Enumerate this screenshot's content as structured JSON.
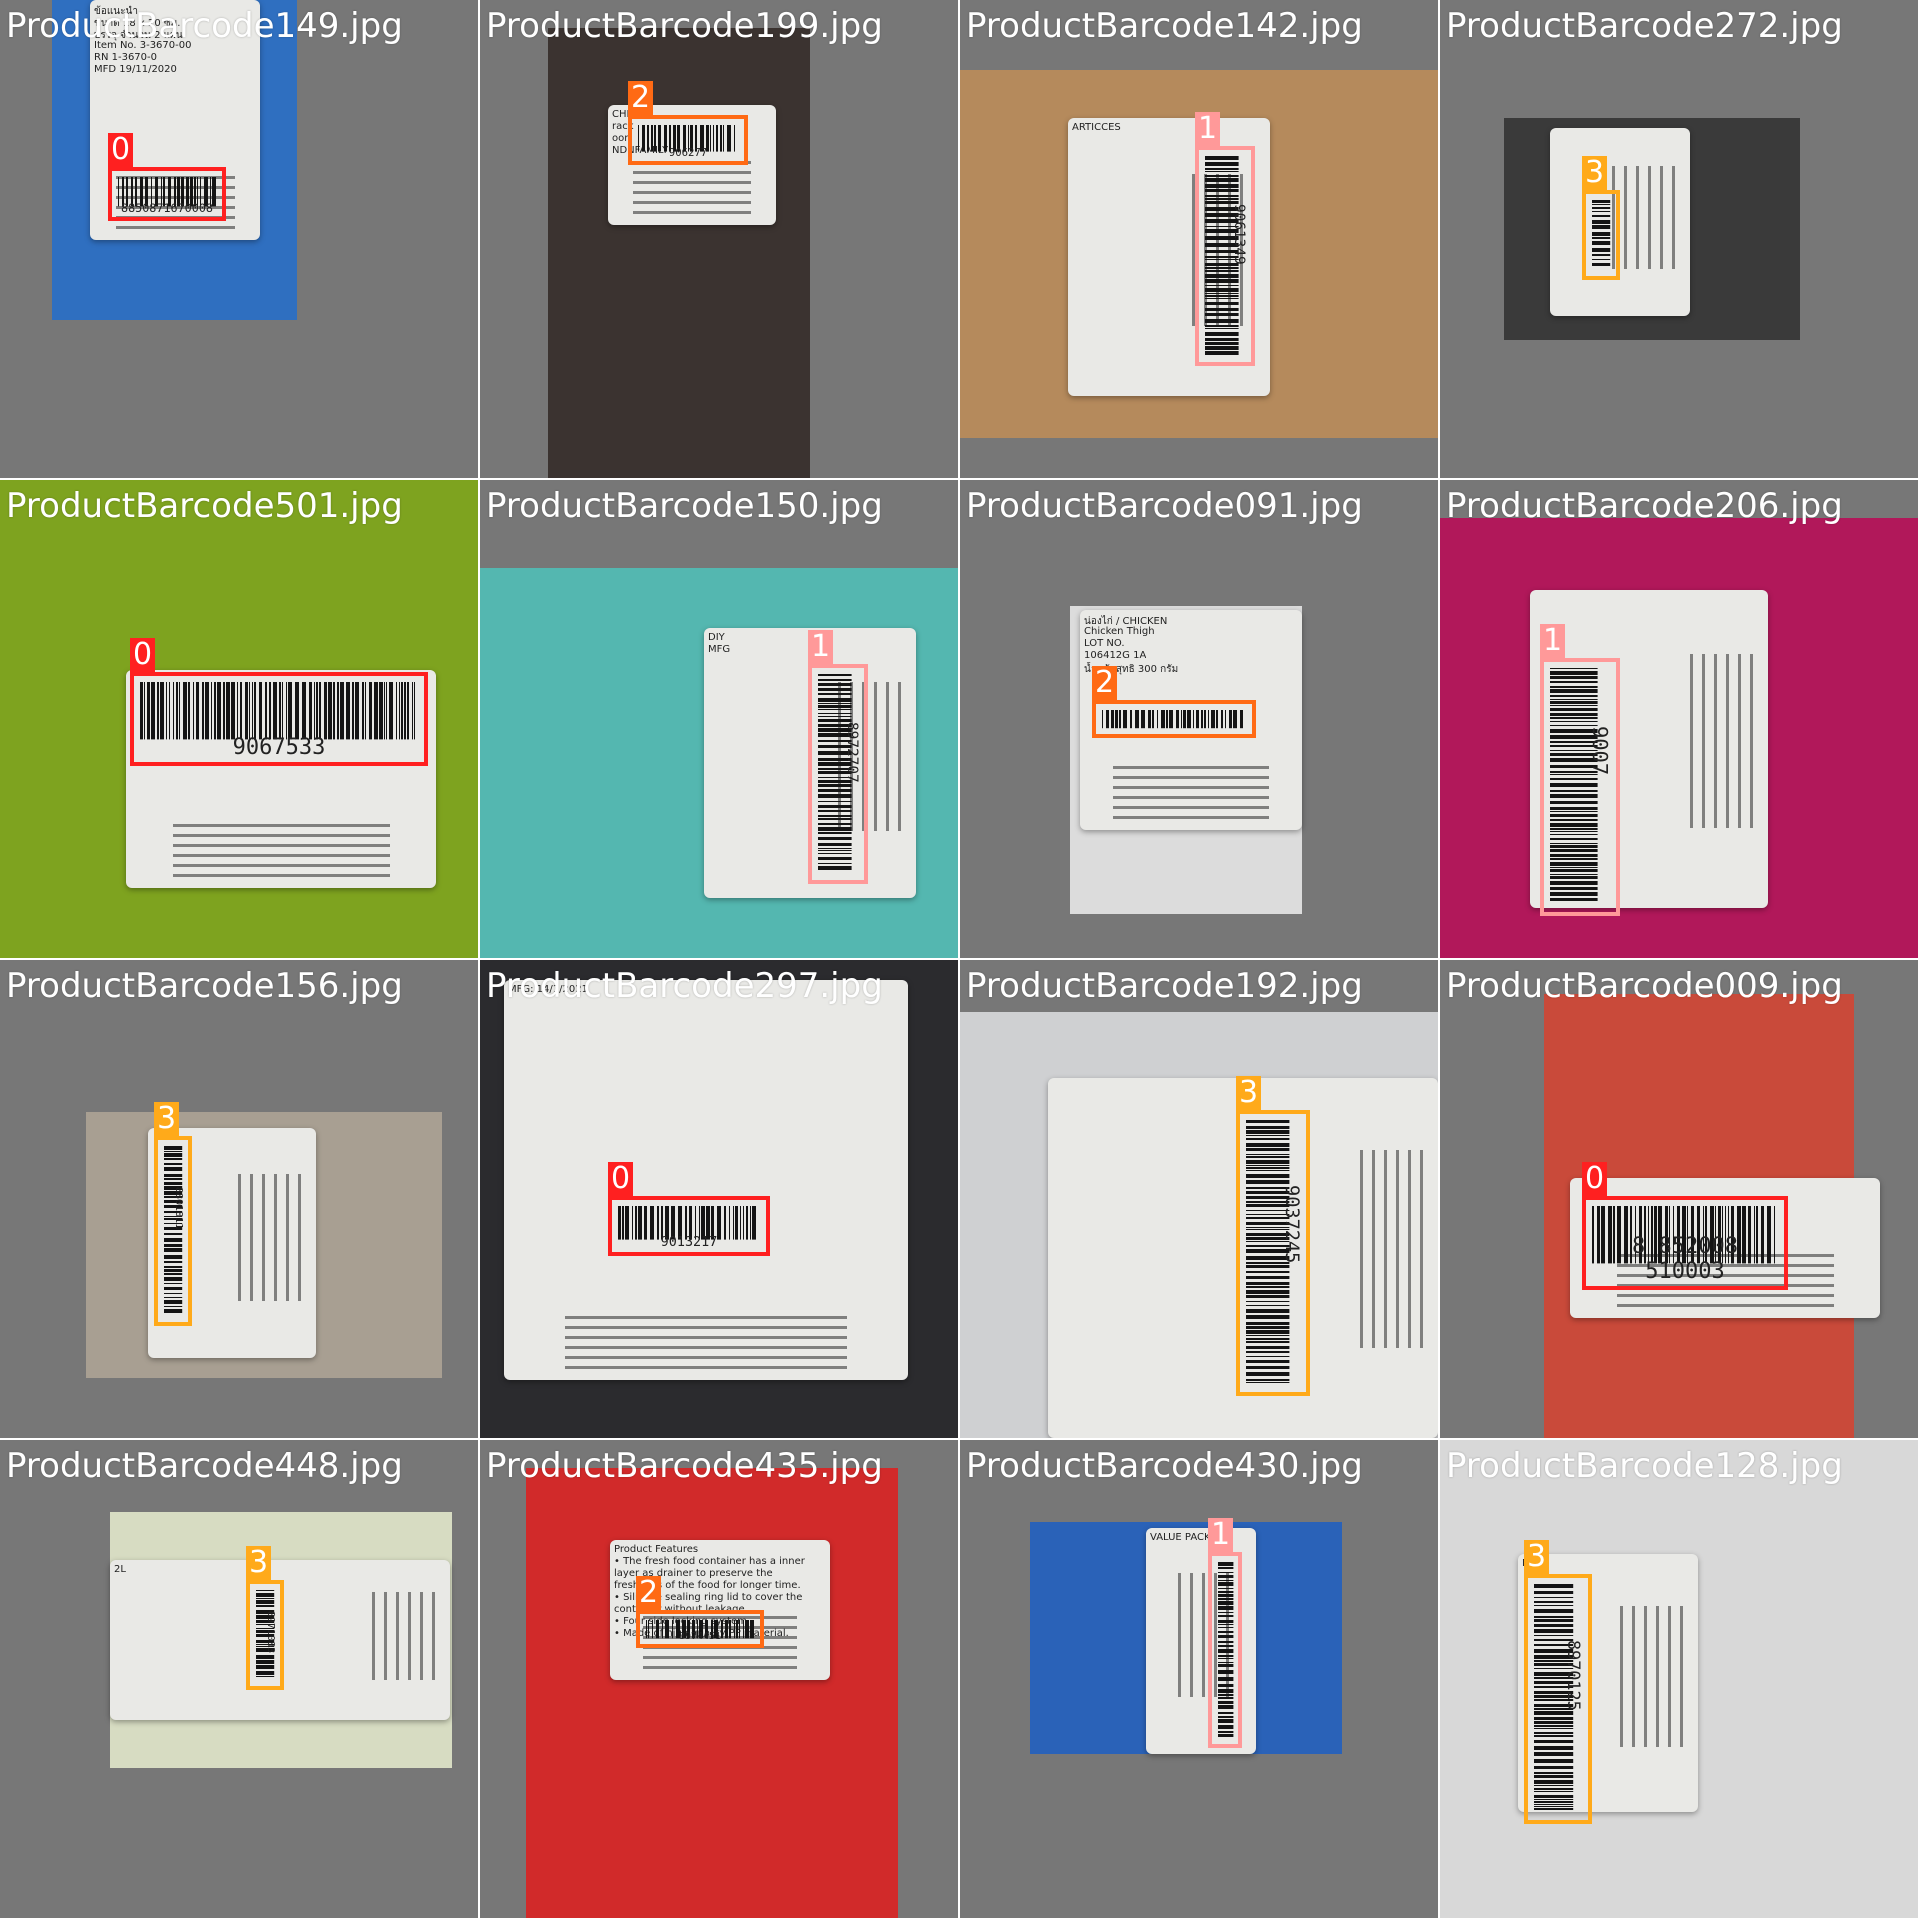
{
  "colors": {
    "tile_bg": "#777777",
    "class_0": "#ff2020",
    "class_1": "#ff9999",
    "class_2": "#ff6a14",
    "class_3": "#ffaa1a"
  },
  "tiles": [
    {
      "name": "ProductBarcode149.jpg",
      "cls": "0",
      "code": "8850871670008",
      "photo": {
        "bg": "#2f6fc0"
      }
    },
    {
      "name": "ProductBarcode199.jpg",
      "cls": "2",
      "code": "906277",
      "photo": {
        "bg": "#3b3330"
      }
    },
    {
      "name": "ProductBarcode142.jpg",
      "cls": "1",
      "code": "9061349",
      "photo": {
        "bg": "#b58a5c"
      }
    },
    {
      "name": "ProductBarcode272.jpg",
      "cls": "3",
      "code": "",
      "photo": {
        "bg": "#3a3a3a"
      }
    },
    {
      "name": "ProductBarcode501.jpg",
      "cls": "0",
      "code": "9067533",
      "photo": {
        "bg": "#7ea31f"
      }
    },
    {
      "name": "ProductBarcode150.jpg",
      "cls": "1",
      "code": "8972707",
      "photo": {
        "bg": "#54b7b0"
      }
    },
    {
      "name": "ProductBarcode091.jpg",
      "cls": "2",
      "code": "",
      "photo": {
        "bg": "#dcdcdc"
      }
    },
    {
      "name": "ProductBarcode206.jpg",
      "cls": "1",
      "code": "9007",
      "photo": {
        "bg": "#b1185a"
      }
    },
    {
      "name": "ProductBarcode156.jpg",
      "cls": "3",
      "code": "8801811",
      "photo": {
        "bg": "#a89f92"
      }
    },
    {
      "name": "ProductBarcode297.jpg",
      "cls": "0",
      "code": "9013217",
      "photo": {
        "bg": "#2b2b2e"
      }
    },
    {
      "name": "ProductBarcode192.jpg",
      "cls": "3",
      "code": "9037245",
      "photo": {
        "bg": "#cfd0d2"
      }
    },
    {
      "name": "ProductBarcode009.jpg",
      "cls": "0",
      "code": "8 852008 510003",
      "photo": {
        "bg": "#c94a3a"
      }
    },
    {
      "name": "ProductBarcode448.jpg",
      "cls": "3",
      "code": "8971083",
      "photo": {
        "bg": "#d7dcc2"
      }
    },
    {
      "name": "ProductBarcode435.jpg",
      "cls": "2",
      "code": "8974451",
      "photo": {
        "bg": "#d12a2a"
      }
    },
    {
      "name": "ProductBarcode430.jpg",
      "cls": "1",
      "code": "",
      "photo": {
        "bg": "#2a62b8"
      }
    },
    {
      "name": "ProductBarcode128.jpg",
      "cls": "3",
      "code": "8970125",
      "photo": {
        "bg": "#d8d8d8"
      }
    }
  ],
  "tile_text": {
    "t0": [
      "ข้อแนะนำ",
      "ขนาด 18 x 20 ซม.",
      "บรรจุ จำนวน 2 แผ่น",
      "Item No. 3-3670-00",
      "RN 1-3670-0",
      "MFD 19/11/2020"
    ],
    "t1": [
      "CHINA",
      "rack",
      "oon",
      "NDNFAMILY"
    ],
    "t2": [
      "ARTICCES"
    ],
    "t5": [
      "DIY",
      "MFG"
    ],
    "t6": [
      "น่องไก่ / CHICKEN",
      "Chicken Thigh",
      "LOT NO.",
      "106412G 1A",
      "น้ำหนักสุทธิ 300 กรัม"
    ],
    "t9": [
      "MFG: 14/1/2021"
    ],
    "t13": [
      "Product Features",
      "• The fresh food container has a inner",
      "layer as drainer to preserve the",
      "freshness of the food for longer time.",
      "• Silicone sealing ring lid to cover the",
      "container without leakage.",
      "• Four side locking system.",
      "• Made of high quality PP material."
    ],
    "t14": [
      "VALUE PACK"
    ],
    "t15": [
      "MFG"
    ],
    "t12": [
      "2L"
    ]
  }
}
